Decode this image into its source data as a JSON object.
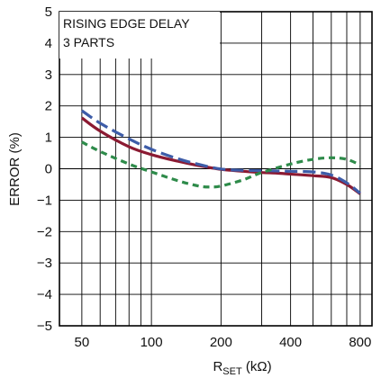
{
  "chart_data": {
    "type": "line",
    "xscale": "log",
    "xlabel_main": "R",
    "xlabel_sub": "SET",
    "xlabel_unit": " (kΩ)",
    "ylabel": "ERROR (%)",
    "xlim": [
      40,
      900
    ],
    "ylim": [
      -5,
      5
    ],
    "x_ticks": [
      50,
      100,
      200,
      400,
      800
    ],
    "x_tick_labels": [
      "50",
      "100",
      "200",
      "400",
      "800"
    ],
    "x_grid": [
      50,
      60,
      70,
      80,
      90,
      100,
      200,
      300,
      400,
      500,
      600,
      700,
      800,
      900
    ],
    "y_ticks": [
      -5,
      -4,
      -3,
      -2,
      -1,
      0,
      1,
      2,
      3,
      4,
      5
    ],
    "y_tick_labels": [
      "−5",
      "−4",
      "−3",
      "−2",
      "−1",
      "0",
      "1",
      "2",
      "3",
      "4",
      "5"
    ],
    "grid": true,
    "annotations": [
      "RISING EDGE DELAY",
      "3 PARTS"
    ],
    "series": [
      {
        "color": "#8b1a32",
        "dash": "none",
        "points": [
          [
            50,
            1.62
          ],
          [
            60,
            1.2
          ],
          [
            80,
            0.7
          ],
          [
            100,
            0.45
          ],
          [
            130,
            0.24
          ],
          [
            160,
            0.1
          ],
          [
            200,
            -0.02
          ],
          [
            250,
            -0.08
          ],
          [
            300,
            -0.12
          ],
          [
            350,
            -0.14
          ],
          [
            400,
            -0.17
          ],
          [
            500,
            -0.22
          ],
          [
            600,
            -0.28
          ],
          [
            700,
            -0.5
          ],
          [
            800,
            -0.8
          ]
        ]
      },
      {
        "color": "#3d5ca8",
        "dash": "14,6",
        "points": [
          [
            50,
            1.85
          ],
          [
            60,
            1.45
          ],
          [
            80,
            0.95
          ],
          [
            100,
            0.62
          ],
          [
            130,
            0.32
          ],
          [
            160,
            0.14
          ],
          [
            200,
            -0.01
          ],
          [
            250,
            -0.05
          ],
          [
            300,
            -0.06
          ],
          [
            350,
            -0.07
          ],
          [
            400,
            -0.08
          ],
          [
            500,
            -0.1
          ],
          [
            600,
            -0.2
          ],
          [
            700,
            -0.45
          ],
          [
            800,
            -0.78
          ]
        ]
      },
      {
        "color": "#2e8b4a",
        "dash": "7,5",
        "points": [
          [
            50,
            0.85
          ],
          [
            60,
            0.55
          ],
          [
            80,
            0.15
          ],
          [
            100,
            -0.1
          ],
          [
            130,
            -0.38
          ],
          [
            160,
            -0.55
          ],
          [
            180,
            -0.58
          ],
          [
            200,
            -0.55
          ],
          [
            250,
            -0.35
          ],
          [
            300,
            -0.12
          ],
          [
            400,
            0.15
          ],
          [
            500,
            0.3
          ],
          [
            600,
            0.35
          ],
          [
            700,
            0.3
          ],
          [
            800,
            0.12
          ]
        ]
      }
    ]
  }
}
